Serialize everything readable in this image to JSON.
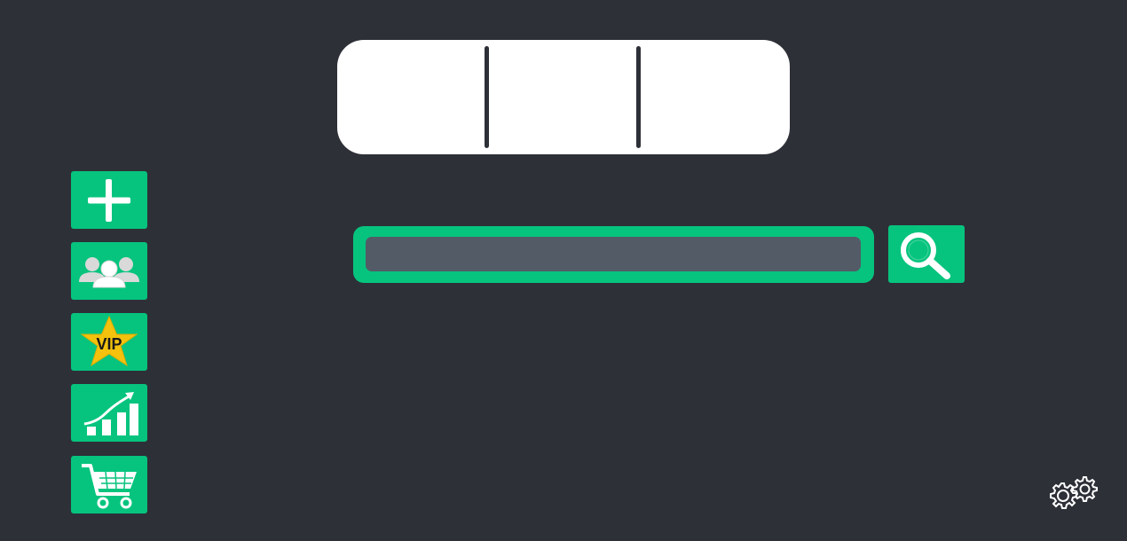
{
  "tabbar": {
    "tabs": [
      {
        "label": ""
      },
      {
        "label": ""
      },
      {
        "label": ""
      }
    ]
  },
  "search": {
    "value": "",
    "placeholder": "",
    "button_icon": "search-icon"
  },
  "sidebar": {
    "items": [
      {
        "icon": "plus-icon"
      },
      {
        "icon": "users-icon"
      },
      {
        "icon": "vip-star-icon",
        "badge_text": "VIP"
      },
      {
        "icon": "growth-chart-icon"
      },
      {
        "icon": "shopping-cart-icon"
      }
    ]
  },
  "settings": {
    "icon": "gears-icon"
  },
  "colors": {
    "background": "#2e3038",
    "accent": "#06c47e",
    "input_fill": "#535b66",
    "vip_star": "#f4c20d"
  }
}
